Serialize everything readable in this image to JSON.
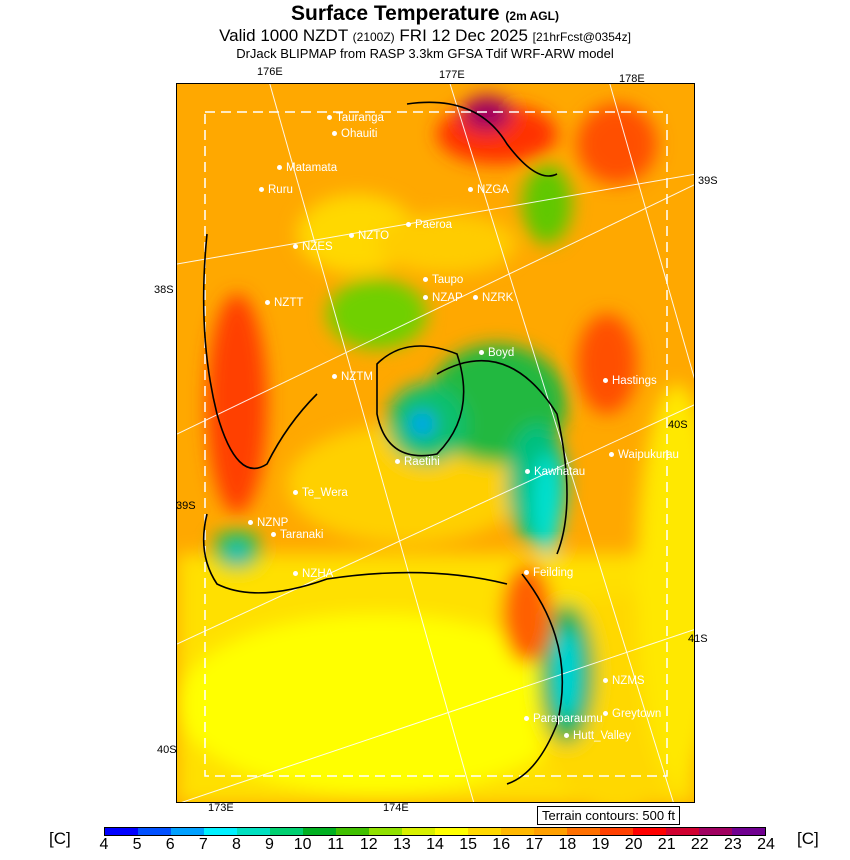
{
  "title": {
    "main": "Surface Temperature",
    "sub": "(2m AGL)",
    "valid": "Valid 1000 NZDT",
    "utc": "(2100Z)",
    "date": "FRI 12 Dec 2025",
    "fcst": "[21hrFcst@0354z]",
    "model": "DrJack BLIPMAP from RASP 3.3km GFSA Tdif WRF-ARW model"
  },
  "axis_labels": {
    "lon_176": "176E",
    "lon_177": "177E",
    "lon_178": "178E",
    "lon_173": "173E",
    "lon_174": "174E",
    "lat_39a": "39S",
    "lat_38": "38S",
    "lat_40a": "40S",
    "lat_39b": "39S",
    "lat_41": "41S",
    "lat_40b": "40S"
  },
  "stations": [
    "Tauranga",
    "Ohauiti",
    "Matamata",
    "Ruru",
    "NZGA",
    "Paeroa",
    "NZTO",
    "NZES",
    "Taupo",
    "NZAP",
    "NZRK",
    "NZTT",
    "Boyd",
    "NZTM",
    "Hastings",
    "Raetihi",
    "Waipukurau",
    "Kawhatau",
    "Te_Wera",
    "NZNP",
    "Taranaki",
    "NZHA",
    "Feilding",
    "NZMS",
    "Greytown",
    "Paraparaumu",
    "Hutt_Valley"
  ],
  "terrain_note": "Terrain contours: 500 ft",
  "colorbar": {
    "unit": "[C]",
    "ticks": [
      "4",
      "5",
      "6",
      "7",
      "8",
      "9",
      "10",
      "11",
      "12",
      "13",
      "14",
      "15",
      "16",
      "17",
      "18",
      "19",
      "20",
      "21",
      "22",
      "23",
      "24"
    ],
    "colors": [
      "#0000ff",
      "#0050ff",
      "#00a0ff",
      "#00f0ff",
      "#00e0c0",
      "#00d070",
      "#00b020",
      "#40c000",
      "#90e000",
      "#d8f000",
      "#ffff00",
      "#ffd800",
      "#ffb800",
      "#ffa000",
      "#ff7000",
      "#ff4000",
      "#ff0000",
      "#d00030",
      "#a00060",
      "#700090"
    ]
  }
}
